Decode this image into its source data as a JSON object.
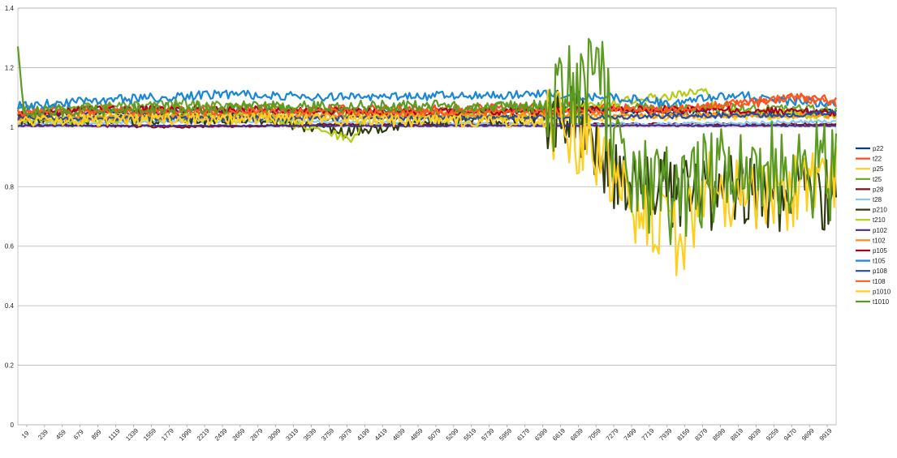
{
  "chart_data": {
    "type": "line",
    "title": "",
    "xlabel": "",
    "ylabel": "",
    "ylim": [
      0,
      1.4
    ],
    "y_ticks": [
      "0",
      "0.2",
      "0.4",
      "0.6",
      "0.8",
      "1",
      "1.2",
      "1.4"
    ],
    "x_tick_labels": [
      "19",
      "239",
      "459",
      "679",
      "899",
      "1119",
      "1339",
      "1559",
      "1779",
      "1999",
      "2219",
      "2439",
      "2659",
      "2879",
      "3099",
      "3319",
      "3539",
      "3759",
      "3979",
      "4199",
      "4419",
      "4639",
      "4859",
      "5079",
      "5299",
      "5519",
      "5739",
      "5959",
      "6179",
      "6399",
      "6619",
      "6839",
      "7059",
      "7279",
      "7499",
      "7719",
      "7939",
      "8159",
      "8379",
      "8599",
      "8819",
      "9039",
      "9259",
      "9470",
      "9699",
      "9919"
    ],
    "x_range": [
      19,
      10029
    ],
    "grid": "horizontal",
    "legend_position": "right",
    "series": [
      {
        "name": "p22",
        "color": "#0b3e7a",
        "base": 1.05,
        "noise": 0.01,
        "values": [
          [
            19,
            1.04
          ],
          [
            1000,
            1.05
          ],
          [
            3000,
            1.05
          ],
          [
            5000,
            1.05
          ],
          [
            7000,
            1.06
          ],
          [
            8000,
            1.05
          ],
          [
            9000,
            1.04
          ],
          [
            10029,
            1.05
          ]
        ]
      },
      {
        "name": "t22",
        "color": "#ff4a1c",
        "base": 1.07,
        "noise": 0.015,
        "values": [
          [
            19,
            1.05
          ],
          [
            1000,
            1.06
          ],
          [
            3000,
            1.06
          ],
          [
            5000,
            1.06
          ],
          [
            7000,
            1.07
          ],
          [
            8000,
            1.06
          ],
          [
            9000,
            1.08
          ],
          [
            9500,
            1.1
          ],
          [
            10029,
            1.09
          ]
        ]
      },
      {
        "name": "p25",
        "color": "#ffd11a",
        "base": 1.04,
        "noise": 0.012,
        "values": [
          [
            19,
            1.03
          ],
          [
            2000,
            1.04
          ],
          [
            4000,
            1.04
          ],
          [
            6000,
            1.03
          ],
          [
            10029,
            1.04
          ]
        ]
      },
      {
        "name": "t25",
        "color": "#6aa327",
        "base": 1.07,
        "noise": 0.015,
        "values": [
          [
            19,
            1.06
          ],
          [
            2000,
            1.08
          ],
          [
            4000,
            1.05
          ],
          [
            6000,
            1.07
          ],
          [
            10029,
            1.06
          ]
        ]
      },
      {
        "name": "p28",
        "color": "#7f0f1e",
        "base": 1.01,
        "noise": 0.004,
        "values": [
          [
            19,
            1.01
          ],
          [
            2000,
            1.0
          ],
          [
            4000,
            1.01
          ],
          [
            6000,
            1.01
          ],
          [
            8000,
            1.01
          ],
          [
            10029,
            1.01
          ]
        ]
      },
      {
        "name": "t28",
        "color": "#86c9f5",
        "base": 1.02,
        "noise": 0.006,
        "values": [
          [
            19,
            1.01
          ],
          [
            2000,
            1.02
          ],
          [
            3500,
            1.02
          ],
          [
            6000,
            1.01
          ],
          [
            8000,
            1.01
          ],
          [
            10029,
            1.02
          ]
        ]
      },
      {
        "name": "p210",
        "color": "#2e3b0f",
        "base": 1.02,
        "noise": 0.02,
        "values": [
          [
            19,
            1.02
          ],
          [
            3000,
            1.03
          ],
          [
            4000,
            0.98
          ],
          [
            5000,
            1.02
          ],
          [
            6800,
            1.03
          ],
          [
            7300,
            0.85
          ],
          [
            8000,
            0.78
          ],
          [
            9000,
            0.78
          ],
          [
            10029,
            0.77
          ]
        ]
      },
      {
        "name": "t210",
        "color": "#b6cc16",
        "base": 1.04,
        "noise": 0.015,
        "values": [
          [
            19,
            1.02
          ],
          [
            3000,
            1.04
          ],
          [
            4100,
            0.96
          ],
          [
            4300,
            1.04
          ],
          [
            6000,
            1.04
          ],
          [
            8450,
            1.12
          ],
          [
            8600,
            1.05
          ],
          [
            10029,
            1.04
          ]
        ]
      },
      {
        "name": "p102",
        "color": "#4b2a8a",
        "base": 1.005,
        "noise": 0.002,
        "values": [
          [
            19,
            1.005
          ],
          [
            5000,
            1.005
          ],
          [
            10029,
            1.005
          ]
        ]
      },
      {
        "name": "t102",
        "color": "#ff8c1a",
        "base": 1.04,
        "noise": 0.01,
        "values": [
          [
            19,
            1.03
          ],
          [
            5000,
            1.04
          ],
          [
            10029,
            1.04
          ]
        ]
      },
      {
        "name": "p105",
        "color": "#b0001c",
        "base": 1.05,
        "noise": 0.012,
        "values": [
          [
            19,
            1.04
          ],
          [
            900,
            1.06
          ],
          [
            2500,
            1.06
          ],
          [
            5000,
            1.05
          ],
          [
            8000,
            1.06
          ],
          [
            10029,
            1.05
          ]
        ]
      },
      {
        "name": "t105",
        "color": "#1a86d6",
        "base": 1.1,
        "noise": 0.015,
        "values": [
          [
            19,
            1.07
          ],
          [
            1000,
            1.09
          ],
          [
            2500,
            1.11
          ],
          [
            4000,
            1.1
          ],
          [
            6400,
            1.11
          ],
          [
            7300,
            1.1
          ],
          [
            8000,
            1.08
          ],
          [
            8800,
            1.11
          ],
          [
            9300,
            1.09
          ],
          [
            10029,
            1.08
          ]
        ]
      },
      {
        "name": "p108",
        "color": "#2150a8",
        "base": 1.03,
        "noise": 0.008,
        "values": [
          [
            19,
            1.03
          ],
          [
            5000,
            1.03
          ],
          [
            9500,
            1.04
          ],
          [
            10029,
            1.05
          ]
        ]
      },
      {
        "name": "t108",
        "color": "#ff5a1f",
        "base": 1.06,
        "noise": 0.012,
        "values": [
          [
            19,
            1.05
          ],
          [
            5000,
            1.05
          ],
          [
            8000,
            1.06
          ],
          [
            9500,
            1.1
          ],
          [
            10029,
            1.08
          ]
        ]
      },
      {
        "name": "p1010",
        "color": "#ffcf1f",
        "base": 1.03,
        "noise": 0.02,
        "values": [
          [
            19,
            1.02
          ],
          [
            3000,
            1.03
          ],
          [
            5000,
            1.02
          ],
          [
            6400,
            1.02
          ],
          [
            7000,
            0.95
          ],
          [
            7400,
            0.78
          ],
          [
            8100,
            0.62
          ],
          [
            8500,
            0.8
          ],
          [
            9000,
            0.78
          ],
          [
            9500,
            0.78
          ],
          [
            10029,
            0.82
          ]
        ]
      },
      {
        "name": "t1010",
        "color": "#5c9b22",
        "base": 1.06,
        "noise": 0.02,
        "values": [
          [
            19,
            1.28
          ],
          [
            100,
            1.05
          ],
          [
            3000,
            1.07
          ],
          [
            6400,
            1.07
          ],
          [
            6900,
            1.12
          ],
          [
            7100,
            1.22
          ],
          [
            7400,
            0.85
          ],
          [
            8100,
            0.75
          ],
          [
            8500,
            0.85
          ],
          [
            9000,
            0.85
          ],
          [
            9500,
            0.86
          ],
          [
            10029,
            0.85
          ]
        ]
      }
    ]
  }
}
